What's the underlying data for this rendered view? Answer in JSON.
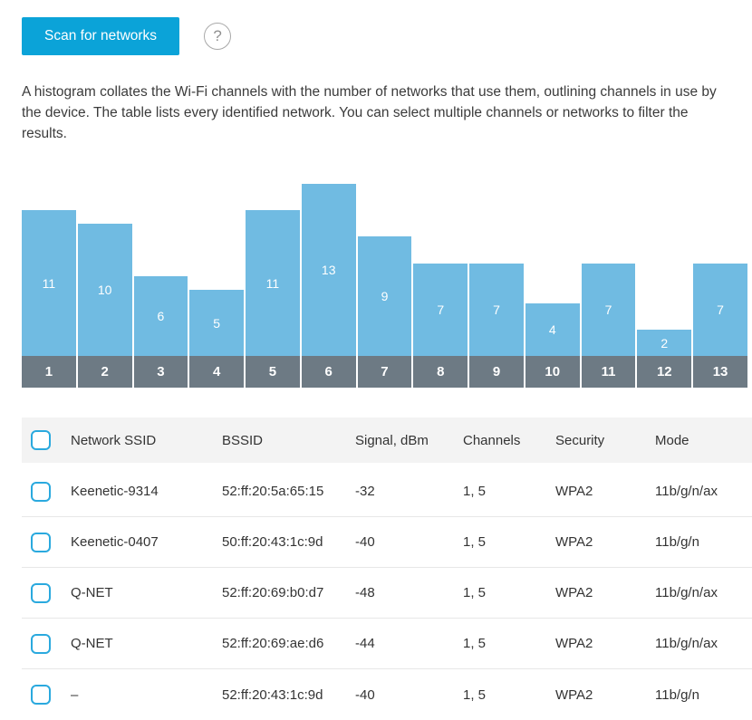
{
  "toolbar": {
    "scan_button": "Scan for networks",
    "help_icon": "?"
  },
  "description": "A histogram collates the Wi-Fi channels with the number of networks that use them, outlining channels in use by the device. The table lists every identified network. You can select multiple channels or networks to filter the results.",
  "chart_data": {
    "type": "bar",
    "categories": [
      "1",
      "2",
      "3",
      "4",
      "5",
      "6",
      "7",
      "8",
      "9",
      "10",
      "11",
      "12",
      "13"
    ],
    "values": [
      11,
      10,
      6,
      5,
      11,
      13,
      9,
      7,
      7,
      4,
      7,
      2,
      7
    ],
    "title": "",
    "xlabel": "",
    "ylabel": "",
    "ylim": [
      0,
      13
    ],
    "grid": false,
    "legend": false,
    "bar_color": "#70bbe2",
    "axis_band_color": "#6d7a84",
    "value_labels": "inside-center-white"
  },
  "colors": {
    "accent": "#0ba3d8",
    "bar": "#70bbe2",
    "band": "#6d7a84",
    "checkbox_border": "#2aa9de"
  },
  "table": {
    "columns": [
      "Network SSID",
      "BSSID",
      "Signal, dBm",
      "Channels",
      "Security",
      "Mode"
    ],
    "rows": [
      {
        "ssid": "Keenetic-9314",
        "bssid": "52:ff:20:5a:65:15",
        "signal": "-32",
        "channels": "1, 5",
        "security": "WPA2",
        "mode": "11b/g/n/ax"
      },
      {
        "ssid": "Keenetic-0407",
        "bssid": "50:ff:20:43:1c:9d",
        "signal": "-40",
        "channels": "1, 5",
        "security": "WPA2",
        "mode": "11b/g/n"
      },
      {
        "ssid": "Q-NET",
        "bssid": "52:ff:20:69:b0:d7",
        "signal": "-48",
        "channels": "1, 5",
        "security": "WPA2",
        "mode": "11b/g/n/ax"
      },
      {
        "ssid": "Q-NET",
        "bssid": "52:ff:20:69:ae:d6",
        "signal": "-44",
        "channels": "1, 5",
        "security": "WPA2",
        "mode": "11b/g/n/ax"
      },
      {
        "ssid": "–",
        "bssid": "52:ff:20:43:1c:9d",
        "signal": "-40",
        "channels": "1, 5",
        "security": "WPA2",
        "mode": "11b/g/n"
      }
    ]
  }
}
